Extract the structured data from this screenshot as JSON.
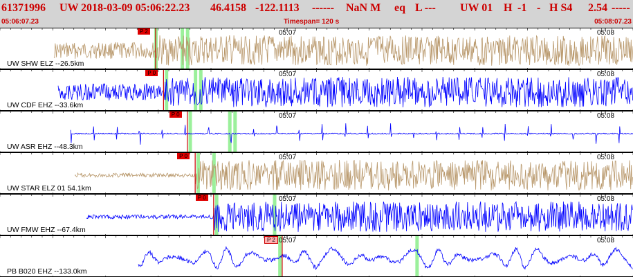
{
  "header": {
    "event_id": "61371996",
    "network": "UW",
    "origin_datetime": "2018-03-09 05:06:22.23",
    "latitude": "46.4158",
    "longitude": "-122.1113",
    "depth": "------",
    "magnitude": "NaN M",
    "event_type": "eq",
    "location_code": "L ---",
    "author_net": "UW 01",
    "quality_flag": "H",
    "gap": "-1",
    "separator": "-",
    "solution": "H S4",
    "rms": "2.54",
    "rms_dashes": "-----",
    "start_time": "05:06:07.23",
    "timespan": "Timespan= 120 s",
    "end_time": "05:08:07.23"
  },
  "colors": {
    "header_bg": "#d4d4d4",
    "header_text": "#cc0000",
    "trace_blue": "#0000ff",
    "trace_tan": "#b8976a",
    "pick_line": "#cc0000",
    "pick_flag_red": "#e00000",
    "pick_flag_pink": "#ffb0b0",
    "green_marker": "#90ee90"
  },
  "panels": [
    {
      "label": "UW SHW ELZ --26.5km",
      "color_role": "trace_tan",
      "pick_label": "P 2",
      "pick_style": "red",
      "pick_time_s": 29.5,
      "tick1": "05:07",
      "tick2": "05:08",
      "green_marks_s": [
        29.5,
        34.5,
        35.5
      ]
    },
    {
      "label": "UW CDF EHZ --33.6km",
      "color_role": "trace_blue",
      "pick_label": "P 0",
      "pick_style": "red",
      "pick_time_s": 31.0,
      "tick1": "05:07",
      "tick2": "05:08",
      "green_marks_s": [
        31.5,
        37.0,
        38.0
      ]
    },
    {
      "label": "UW ASR EHZ --48.3km",
      "color_role": "trace_blue",
      "pick_label": "P 0",
      "pick_style": "red",
      "pick_time_s": 35.5,
      "tick1": "05:07",
      "tick2": "05:08",
      "green_marks_s": [
        36.0,
        43.5,
        44.5
      ]
    },
    {
      "label": "UW STAR ELZ 01 54.1km",
      "color_role": "trace_tan",
      "pick_label": "P 0",
      "pick_style": "red",
      "pick_time_s": 37.0,
      "tick1": "05:07",
      "tick2": "05:08",
      "green_marks_s": [
        37.5,
        40.5
      ]
    },
    {
      "label": "UW FMW EHZ --67.4km",
      "color_role": "trace_blue",
      "pick_label": "P 0",
      "pick_style": "red",
      "pick_time_s": 40.5,
      "tick1": "05:07",
      "tick2": "05:08",
      "green_marks_s": [
        41.0,
        52.0
      ]
    },
    {
      "label": "PB B020 EHZ --133.0km",
      "color_role": "trace_blue",
      "pick_label": "P 2",
      "pick_style": "pink",
      "pick_time_s": 53.5,
      "tick1": "05:07",
      "tick2": "05:08",
      "green_marks_s": [
        53.0,
        79.0
      ]
    }
  ]
}
